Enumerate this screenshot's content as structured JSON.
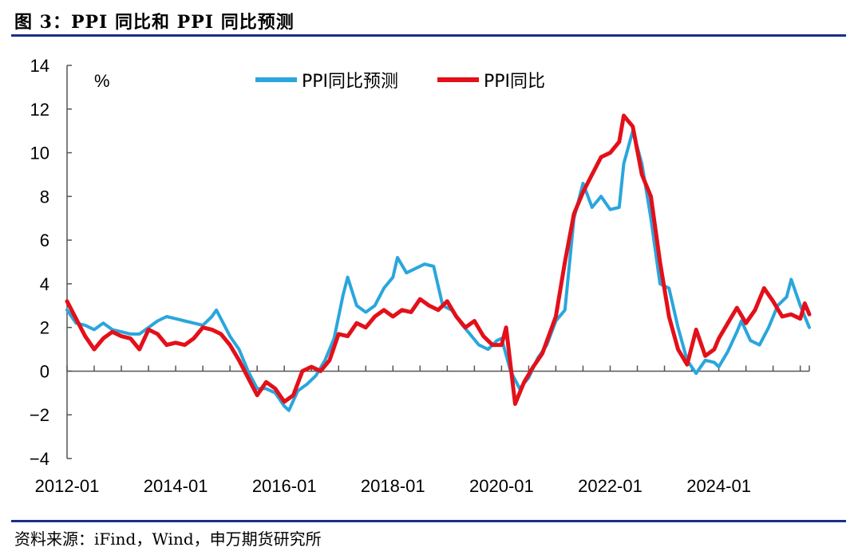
{
  "title": "图 3：PPI 同比和 PPI 同比预测",
  "source": "资料来源：iFind，Wind，申万期货研究所",
  "chart_data": {
    "type": "line",
    "unit_label": "%",
    "ylim": [
      -4,
      14
    ],
    "yticks": [
      "14",
      "12",
      "10",
      "8",
      "6",
      "4",
      "2",
      "0",
      "−2",
      "−4"
    ],
    "xtick_labels": [
      "2012-01",
      "2014-01",
      "2016-01",
      "2018-01",
      "2020-01",
      "2022-01",
      "2024-01"
    ],
    "x_start": "2012-01",
    "x_end": "2025-09",
    "legend_position": "top",
    "series": [
      {
        "name": "PPI同比预测",
        "color": "#2aa6dc",
        "points": [
          [
            "2012-01",
            2.8
          ],
          [
            "2012-03",
            2.2
          ],
          [
            "2012-05",
            2.1
          ],
          [
            "2012-07",
            1.9
          ],
          [
            "2012-09",
            2.2
          ],
          [
            "2012-11",
            1.9
          ],
          [
            "2013-01",
            1.8
          ],
          [
            "2013-03",
            1.7
          ],
          [
            "2013-05",
            1.7
          ],
          [
            "2013-07",
            2.0
          ],
          [
            "2013-09",
            2.3
          ],
          [
            "2013-11",
            2.5
          ],
          [
            "2014-01",
            2.4
          ],
          [
            "2014-03",
            2.3
          ],
          [
            "2014-05",
            2.2
          ],
          [
            "2014-07",
            2.1
          ],
          [
            "2014-09",
            2.5
          ],
          [
            "2014-10",
            2.8
          ],
          [
            "2014-11",
            2.4
          ],
          [
            "2015-01",
            1.6
          ],
          [
            "2015-03",
            1.0
          ],
          [
            "2015-05",
            0.0
          ],
          [
            "2015-07",
            -0.8
          ],
          [
            "2015-09",
            -0.8
          ],
          [
            "2015-11",
            -1.0
          ],
          [
            "2016-01",
            -1.6
          ],
          [
            "2016-02",
            -1.8
          ],
          [
            "2016-04",
            -0.9
          ],
          [
            "2016-06",
            -0.6
          ],
          [
            "2016-08",
            -0.2
          ],
          [
            "2016-10",
            0.5
          ],
          [
            "2016-12",
            1.5
          ],
          [
            "2017-02",
            3.5
          ],
          [
            "2017-03",
            4.3
          ],
          [
            "2017-05",
            3.0
          ],
          [
            "2017-07",
            2.7
          ],
          [
            "2017-09",
            3.0
          ],
          [
            "2017-11",
            3.8
          ],
          [
            "2018-01",
            4.3
          ],
          [
            "2018-02",
            5.2
          ],
          [
            "2018-04",
            4.5
          ],
          [
            "2018-06",
            4.7
          ],
          [
            "2018-08",
            4.9
          ],
          [
            "2018-10",
            4.8
          ],
          [
            "2018-12",
            3.0
          ],
          [
            "2019-02",
            2.8
          ],
          [
            "2019-04",
            2.2
          ],
          [
            "2019-06",
            1.7
          ],
          [
            "2019-08",
            1.2
          ],
          [
            "2019-10",
            1.0
          ],
          [
            "2019-12",
            1.4
          ],
          [
            "2020-01",
            1.5
          ],
          [
            "2020-03",
            0.0
          ],
          [
            "2020-05",
            -0.8
          ],
          [
            "2020-07",
            -0.3
          ],
          [
            "2020-09",
            0.6
          ],
          [
            "2020-11",
            1.2
          ],
          [
            "2021-01",
            2.3
          ],
          [
            "2021-03",
            2.8
          ],
          [
            "2021-05",
            7.0
          ],
          [
            "2021-07",
            8.6
          ],
          [
            "2021-09",
            7.5
          ],
          [
            "2021-11",
            8.0
          ],
          [
            "2022-01",
            7.4
          ],
          [
            "2022-03",
            7.5
          ],
          [
            "2022-04",
            9.5
          ],
          [
            "2022-06",
            11.0
          ],
          [
            "2022-08",
            9.5
          ],
          [
            "2022-10",
            7.0
          ],
          [
            "2022-12",
            4.0
          ],
          [
            "2023-02",
            3.8
          ],
          [
            "2023-04",
            2.0
          ],
          [
            "2023-06",
            0.5
          ],
          [
            "2023-08",
            -0.1
          ],
          [
            "2023-10",
            0.5
          ],
          [
            "2023-12",
            0.4
          ],
          [
            "2024-01",
            0.2
          ],
          [
            "2024-03",
            0.9
          ],
          [
            "2024-05",
            1.8
          ],
          [
            "2024-06",
            2.3
          ],
          [
            "2024-08",
            1.4
          ],
          [
            "2024-10",
            1.2
          ],
          [
            "2024-12",
            2.0
          ],
          [
            "2025-02",
            3.0
          ],
          [
            "2025-04",
            3.4
          ],
          [
            "2025-05",
            4.2
          ],
          [
            "2025-07",
            3.0
          ],
          [
            "2025-09",
            2.0
          ]
        ]
      },
      {
        "name": "PPI同比",
        "color": "#e3101a",
        "points": [
          [
            "2012-01",
            3.2
          ],
          [
            "2012-03",
            2.4
          ],
          [
            "2012-05",
            1.6
          ],
          [
            "2012-07",
            1.0
          ],
          [
            "2012-09",
            1.5
          ],
          [
            "2012-11",
            1.8
          ],
          [
            "2013-01",
            1.6
          ],
          [
            "2013-03",
            1.5
          ],
          [
            "2013-05",
            1.0
          ],
          [
            "2013-07",
            1.9
          ],
          [
            "2013-09",
            1.7
          ],
          [
            "2013-11",
            1.2
          ],
          [
            "2014-01",
            1.3
          ],
          [
            "2014-03",
            1.2
          ],
          [
            "2014-05",
            1.5
          ],
          [
            "2014-07",
            2.0
          ],
          [
            "2014-09",
            1.9
          ],
          [
            "2014-11",
            1.7
          ],
          [
            "2015-01",
            1.2
          ],
          [
            "2015-03",
            0.5
          ],
          [
            "2015-05",
            -0.3
          ],
          [
            "2015-07",
            -1.1
          ],
          [
            "2015-09",
            -0.5
          ],
          [
            "2015-11",
            -0.8
          ],
          [
            "2016-01",
            -1.4
          ],
          [
            "2016-03",
            -1.1
          ],
          [
            "2016-05",
            0.0
          ],
          [
            "2016-07",
            0.2
          ],
          [
            "2016-09",
            0.0
          ],
          [
            "2016-11",
            0.5
          ],
          [
            "2017-01",
            1.7
          ],
          [
            "2017-03",
            1.6
          ],
          [
            "2017-05",
            2.2
          ],
          [
            "2017-07",
            2.0
          ],
          [
            "2017-09",
            2.5
          ],
          [
            "2017-11",
            2.8
          ],
          [
            "2018-01",
            2.5
          ],
          [
            "2018-03",
            2.8
          ],
          [
            "2018-05",
            2.7
          ],
          [
            "2018-07",
            3.3
          ],
          [
            "2018-09",
            3.0
          ],
          [
            "2018-11",
            2.8
          ],
          [
            "2019-01",
            3.2
          ],
          [
            "2019-03",
            2.5
          ],
          [
            "2019-05",
            2.0
          ],
          [
            "2019-07",
            2.3
          ],
          [
            "2019-09",
            1.6
          ],
          [
            "2019-11",
            1.2
          ],
          [
            "2020-01",
            1.2
          ],
          [
            "2020-02",
            2.0
          ],
          [
            "2020-04",
            -1.5
          ],
          [
            "2020-06",
            -0.5
          ],
          [
            "2020-08",
            0.2
          ],
          [
            "2020-10",
            0.8
          ],
          [
            "2021-01",
            2.5
          ],
          [
            "2021-03",
            5.0
          ],
          [
            "2021-05",
            7.2
          ],
          [
            "2021-07",
            8.2
          ],
          [
            "2021-09",
            9.0
          ],
          [
            "2021-11",
            9.8
          ],
          [
            "2022-01",
            10.0
          ],
          [
            "2022-03",
            10.5
          ],
          [
            "2022-04",
            11.7
          ],
          [
            "2022-06",
            11.2
          ],
          [
            "2022-08",
            9.0
          ],
          [
            "2022-10",
            8.0
          ],
          [
            "2022-12",
            5.0
          ],
          [
            "2023-02",
            2.5
          ],
          [
            "2023-04",
            1.0
          ],
          [
            "2023-06",
            0.3
          ],
          [
            "2023-08",
            1.9
          ],
          [
            "2023-10",
            0.7
          ],
          [
            "2023-12",
            1.0
          ],
          [
            "2024-01",
            1.5
          ],
          [
            "2024-03",
            2.2
          ],
          [
            "2024-05",
            2.9
          ],
          [
            "2024-07",
            2.2
          ],
          [
            "2024-09",
            2.8
          ],
          [
            "2024-11",
            3.8
          ],
          [
            "2025-01",
            3.2
          ],
          [
            "2025-03",
            2.5
          ],
          [
            "2025-05",
            2.6
          ],
          [
            "2025-07",
            2.4
          ],
          [
            "2025-08",
            3.1
          ],
          [
            "2025-09",
            2.6
          ]
        ]
      }
    ]
  }
}
